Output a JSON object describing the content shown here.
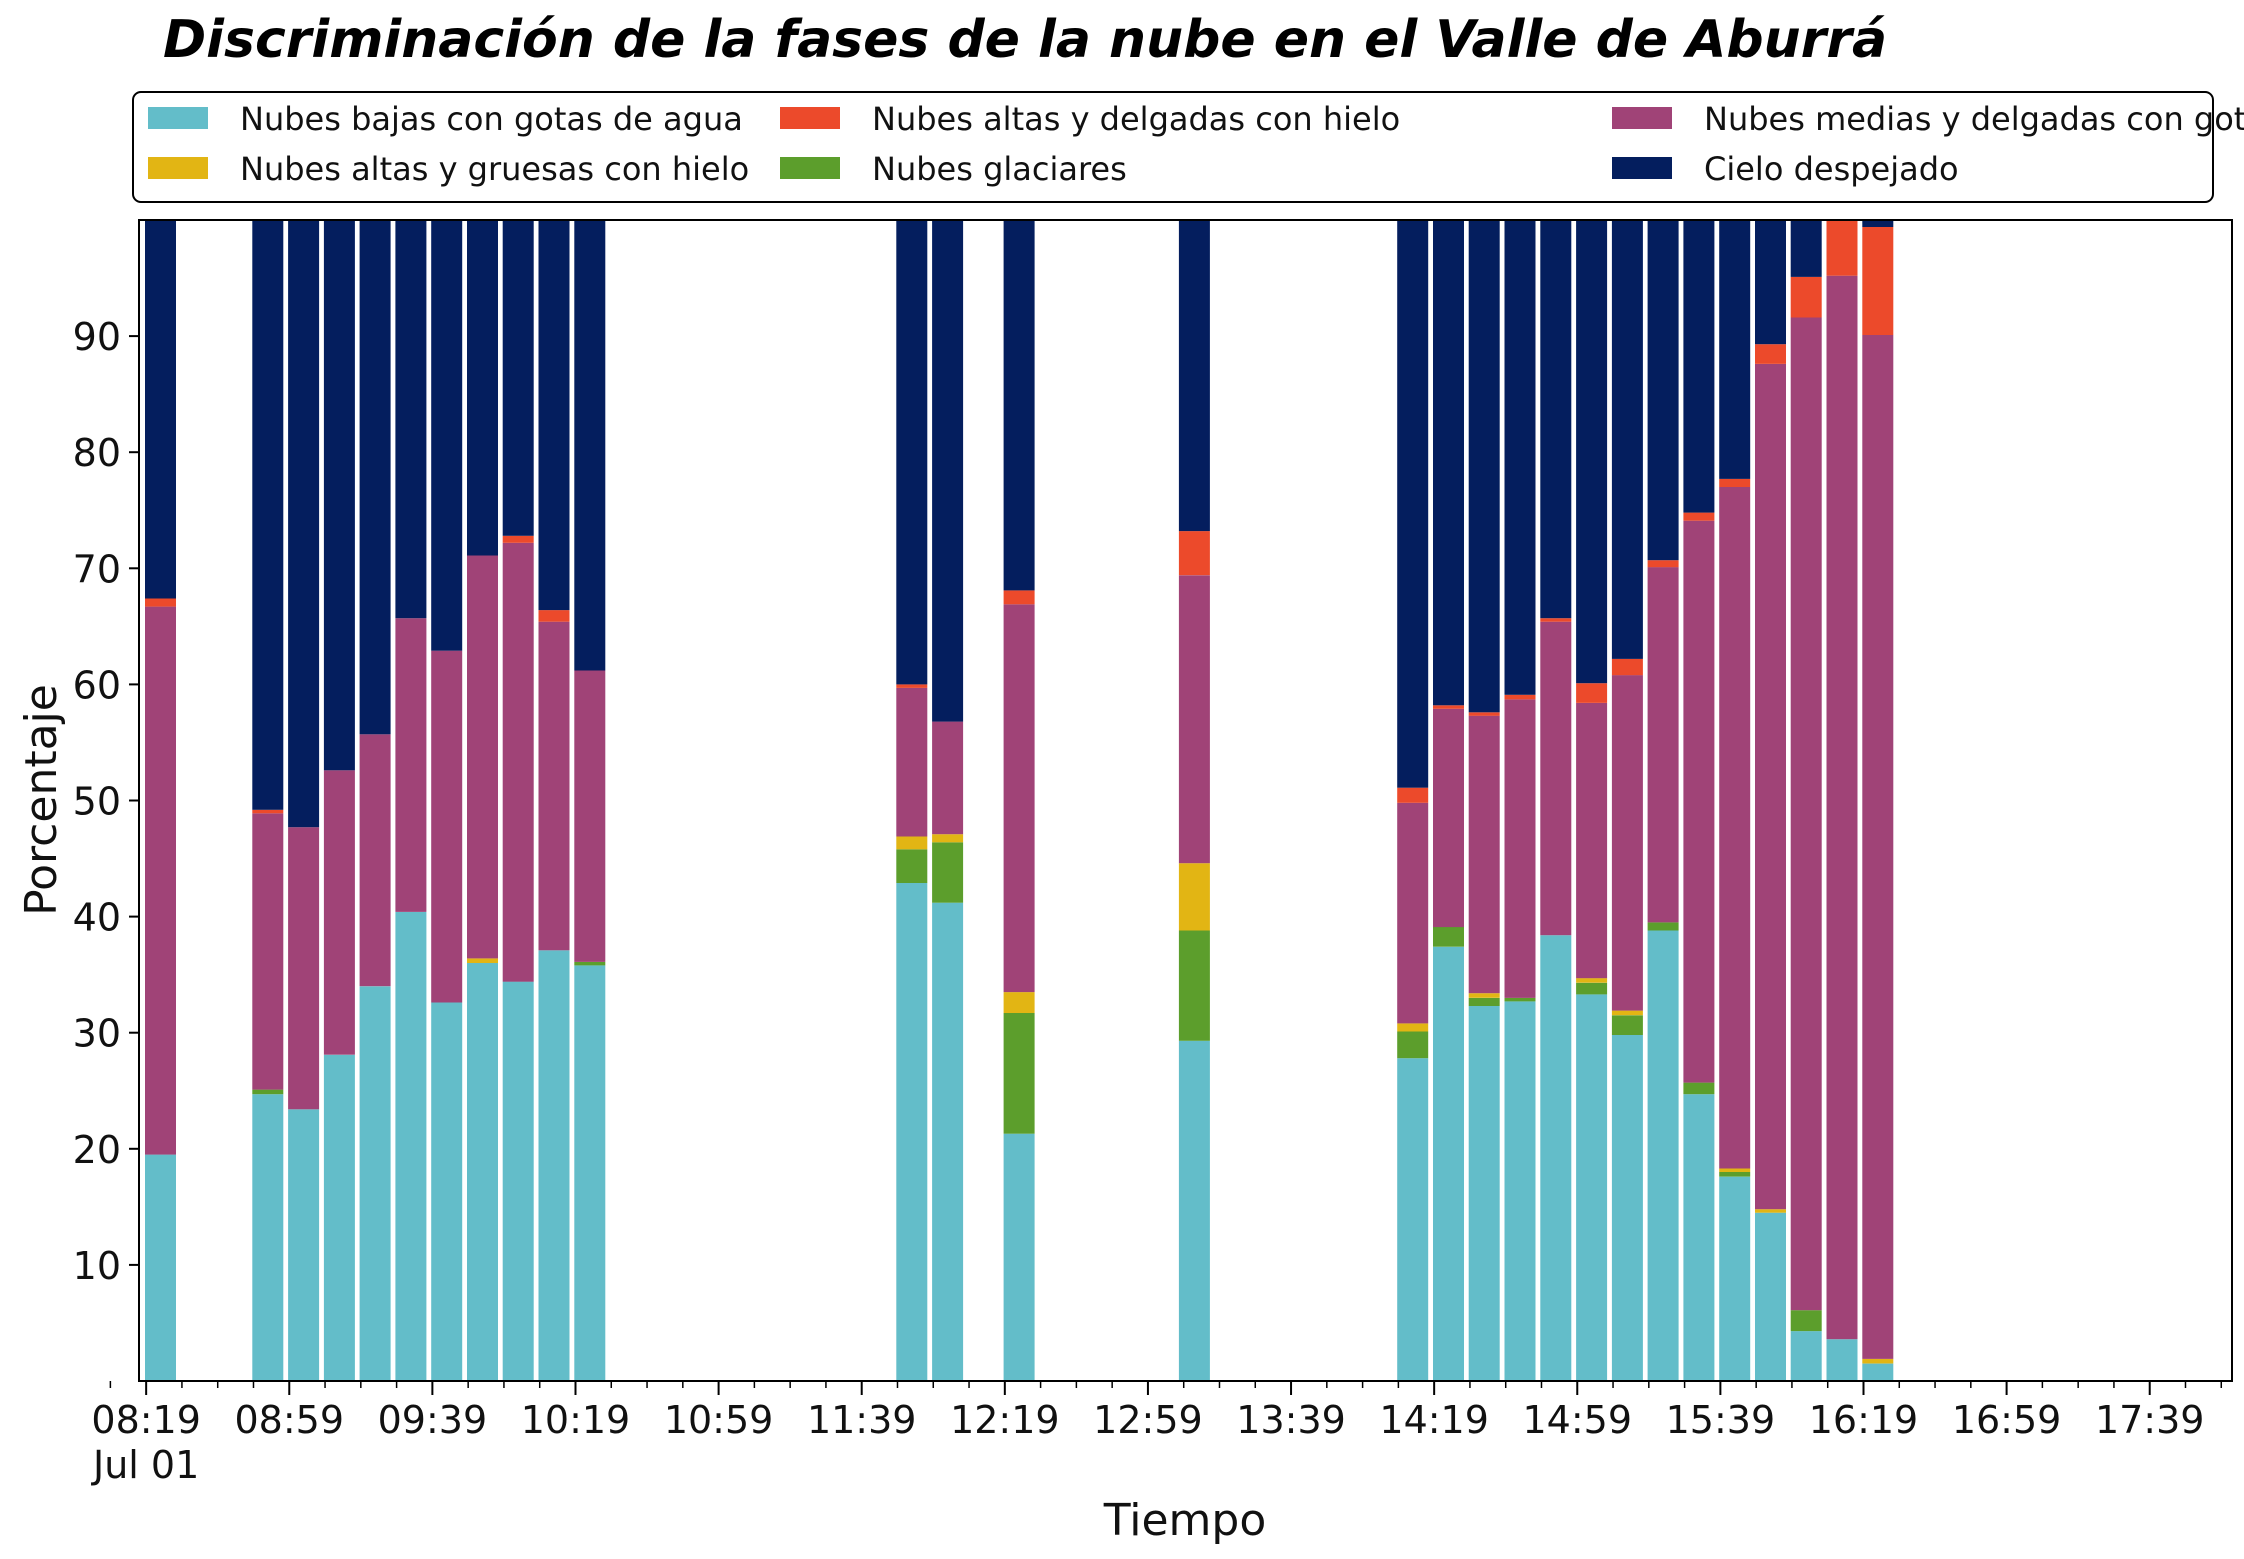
{
  "chart_data": {
    "type": "bar",
    "stacked": true,
    "title": "Discriminación de la fases de la nube en el Valle de Aburrá",
    "xlabel": "Tiempo",
    "ylabel": "Porcentaje",
    "ylim": [
      0,
      100
    ],
    "yticks": [
      10,
      20,
      30,
      40,
      50,
      60,
      70,
      80,
      90
    ],
    "x_time_range_minutes": [
      497,
      1082
    ],
    "xticks": [
      {
        "label": "08:19",
        "sub": "Jul 01",
        "t": 499
      },
      {
        "label": "08:59",
        "t": 539
      },
      {
        "label": "09:39",
        "t": 579
      },
      {
        "label": "10:19",
        "t": 619
      },
      {
        "label": "10:59",
        "t": 659
      },
      {
        "label": "11:39",
        "t": 699
      },
      {
        "label": "12:19",
        "t": 739
      },
      {
        "label": "12:59",
        "t": 779
      },
      {
        "label": "13:39",
        "t": 819
      },
      {
        "label": "14:19",
        "t": 859
      },
      {
        "label": "14:59",
        "t": 899
      },
      {
        "label": "15:39",
        "t": 939
      },
      {
        "label": "16:19",
        "t": 979
      },
      {
        "label": "16:59",
        "t": 1019
      },
      {
        "label": "17:39",
        "t": 1059
      }
    ],
    "legend_position": "top",
    "series": [
      {
        "name": "Nubes bajas con gotas de agua",
        "color": "#63bdc9"
      },
      {
        "name": "Nubes glaciares",
        "color": "#5c9e2c"
      },
      {
        "name": "Nubes altas y gruesas con hielo",
        "color": "#e2b514"
      },
      {
        "name": "Nubes medias y delgadas con gotas de agua",
        "color": "#a04377"
      },
      {
        "name": "Nubes altas y delgadas con hielo",
        "color": "#ec4a2b"
      },
      {
        "name": "Cielo despejado",
        "color": "#041e5e"
      }
    ],
    "legend_order": [
      0,
      2,
      4,
      1,
      3,
      5
    ],
    "bars": [
      {
        "t": 503,
        "values": [
          19.5,
          0,
          0,
          47.2,
          0.7,
          32.6
        ]
      },
      {
        "t": 533,
        "values": [
          24.7,
          0.4,
          0,
          23.8,
          0.3,
          50.8
        ]
      },
      {
        "t": 543,
        "values": [
          23.4,
          0,
          0,
          24.3,
          0,
          52.3
        ]
      },
      {
        "t": 553,
        "values": [
          28.1,
          0,
          0,
          24.5,
          0,
          47.4
        ]
      },
      {
        "t": 563,
        "values": [
          34.0,
          0,
          0,
          21.7,
          0,
          44.3
        ]
      },
      {
        "t": 573,
        "values": [
          40.4,
          0,
          0,
          25.3,
          0,
          34.3
        ]
      },
      {
        "t": 583,
        "values": [
          32.6,
          0,
          0,
          30.3,
          0,
          37.1
        ]
      },
      {
        "t": 593,
        "values": [
          36.0,
          0,
          0.4,
          34.7,
          0,
          28.9
        ]
      },
      {
        "t": 603,
        "values": [
          34.4,
          0,
          0,
          37.8,
          0.6,
          27.2
        ]
      },
      {
        "t": 613,
        "values": [
          37.1,
          0,
          0,
          28.3,
          1.0,
          33.6
        ]
      },
      {
        "t": 623,
        "values": [
          35.8,
          0.3,
          0,
          25.1,
          0,
          38.8
        ]
      },
      {
        "t": 713,
        "values": [
          42.9,
          2.9,
          1.1,
          12.8,
          0.3,
          40.0
        ]
      },
      {
        "t": 723,
        "values": [
          41.2,
          5.2,
          0.7,
          9.7,
          0,
          43.2
        ]
      },
      {
        "t": 743,
        "values": [
          21.3,
          10.4,
          1.8,
          33.4,
          1.2,
          31.9
        ]
      },
      {
        "t": 792,
        "values": [
          29.3,
          9.5,
          5.8,
          24.8,
          3.8,
          26.8
        ]
      },
      {
        "t": 853,
        "values": [
          27.8,
          2.3,
          0.7,
          19.0,
          1.3,
          48.9
        ]
      },
      {
        "t": 863,
        "values": [
          37.4,
          1.7,
          0,
          18.8,
          0.3,
          41.8
        ]
      },
      {
        "t": 873,
        "values": [
          32.3,
          0.7,
          0.4,
          23.9,
          0.3,
          42.4
        ]
      },
      {
        "t": 883,
        "values": [
          32.7,
          0.3,
          0,
          25.7,
          0.4,
          40.9
        ]
      },
      {
        "t": 893,
        "values": [
          38.4,
          0,
          0,
          27.0,
          0.3,
          34.3
        ]
      },
      {
        "t": 903,
        "values": [
          33.3,
          1.0,
          0.4,
          23.7,
          1.7,
          39.9
        ]
      },
      {
        "t": 913,
        "values": [
          29.8,
          1.7,
          0.4,
          28.9,
          1.4,
          37.8
        ]
      },
      {
        "t": 923,
        "values": [
          38.8,
          0.7,
          0,
          30.6,
          0.6,
          29.3
        ]
      },
      {
        "t": 933,
        "values": [
          24.7,
          1.0,
          0,
          48.4,
          0.7,
          25.2
        ]
      },
      {
        "t": 943,
        "values": [
          17.6,
          0.4,
          0.3,
          58.7,
          0.7,
          22.3
        ]
      },
      {
        "t": 953,
        "values": [
          14.5,
          0,
          0.3,
          72.8,
          1.7,
          10.7
        ]
      },
      {
        "t": 963,
        "values": [
          4.3,
          1.8,
          0,
          85.5,
          3.5,
          4.9
        ]
      },
      {
        "t": 973,
        "values": [
          3.6,
          0,
          0,
          91.6,
          4.8,
          0
        ]
      },
      {
        "t": 983,
        "values": [
          1.5,
          0,
          0.4,
          88.2,
          9.3,
          0.6
        ]
      }
    ]
  }
}
